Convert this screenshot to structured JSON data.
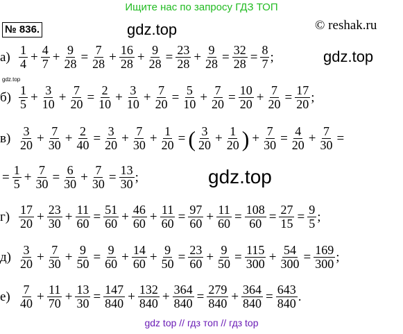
{
  "banner": "Ищите нас по запросу ГДЗ ТОП",
  "problem_number": "№ 836.",
  "watermark": "gdz.top",
  "watermark_small": "gdz.top",
  "site": "© reshak.ru",
  "footer": "gdz top  //  гдз топ  //  гдз top",
  "rows": [
    {
      "label": "а)",
      "items": [
        {
          "t": "f",
          "n": "1",
          "d": "4"
        },
        {
          "t": "o",
          "v": "+"
        },
        {
          "t": "f",
          "n": "4",
          "d": "7"
        },
        {
          "t": "o",
          "v": "+"
        },
        {
          "t": "f",
          "n": "9",
          "d": "28"
        },
        {
          "t": "o",
          "v": "="
        },
        {
          "t": "f",
          "n": "7",
          "d": "28"
        },
        {
          "t": "o",
          "v": "+"
        },
        {
          "t": "f",
          "n": "16",
          "d": "28"
        },
        {
          "t": "o",
          "v": "+"
        },
        {
          "t": "f",
          "n": "9",
          "d": "28"
        },
        {
          "t": "o",
          "v": "="
        },
        {
          "t": "f",
          "n": "23",
          "d": "28"
        },
        {
          "t": "o",
          "v": "+"
        },
        {
          "t": "f",
          "n": "9",
          "d": "28"
        },
        {
          "t": "o",
          "v": "="
        },
        {
          "t": "f",
          "n": "32",
          "d": "28"
        },
        {
          "t": "o",
          "v": "="
        },
        {
          "t": "f",
          "n": "8",
          "d": "7"
        },
        {
          "t": "p",
          "v": ";"
        }
      ]
    },
    {
      "label": "б)",
      "items": [
        {
          "t": "f",
          "n": "1",
          "d": "5"
        },
        {
          "t": "o",
          "v": "+"
        },
        {
          "t": "f",
          "n": "3",
          "d": "10"
        },
        {
          "t": "o",
          "v": "+"
        },
        {
          "t": "f",
          "n": "7",
          "d": "20"
        },
        {
          "t": "o",
          "v": "="
        },
        {
          "t": "f",
          "n": "2",
          "d": "10"
        },
        {
          "t": "o",
          "v": "+"
        },
        {
          "t": "f",
          "n": "3",
          "d": "10"
        },
        {
          "t": "o",
          "v": "+"
        },
        {
          "t": "f",
          "n": "7",
          "d": "20"
        },
        {
          "t": "o",
          "v": "="
        },
        {
          "t": "f",
          "n": "5",
          "d": "10"
        },
        {
          "t": "o",
          "v": "+"
        },
        {
          "t": "f",
          "n": "7",
          "d": "20"
        },
        {
          "t": "o",
          "v": "="
        },
        {
          "t": "f",
          "n": "10",
          "d": "20"
        },
        {
          "t": "o",
          "v": "+"
        },
        {
          "t": "f",
          "n": "7",
          "d": "20"
        },
        {
          "t": "o",
          "v": "="
        },
        {
          "t": "f",
          "n": "17",
          "d": "20"
        },
        {
          "t": "p",
          "v": ";"
        }
      ]
    },
    {
      "label": "в)",
      "items": [
        {
          "t": "f",
          "n": "3",
          "d": "20"
        },
        {
          "t": "o",
          "v": "+"
        },
        {
          "t": "f",
          "n": "7",
          "d": "30"
        },
        {
          "t": "o",
          "v": "+"
        },
        {
          "t": "f",
          "n": "2",
          "d": "40"
        },
        {
          "t": "o",
          "v": "="
        },
        {
          "t": "f",
          "n": "3",
          "d": "20"
        },
        {
          "t": "o",
          "v": "+"
        },
        {
          "t": "f",
          "n": "7",
          "d": "30"
        },
        {
          "t": "o",
          "v": "+"
        },
        {
          "t": "f",
          "n": "1",
          "d": "20"
        },
        {
          "t": "o",
          "v": "="
        },
        {
          "t": "b",
          "v": "("
        },
        {
          "t": "f",
          "n": "3",
          "d": "20"
        },
        {
          "t": "o",
          "v": "+"
        },
        {
          "t": "f",
          "n": "1",
          "d": "20"
        },
        {
          "t": "b",
          "v": ")"
        },
        {
          "t": "o",
          "v": "+"
        },
        {
          "t": "f",
          "n": "7",
          "d": "30"
        },
        {
          "t": "o",
          "v": "="
        },
        {
          "t": "f",
          "n": "4",
          "d": "20"
        },
        {
          "t": "o",
          "v": "+"
        },
        {
          "t": "f",
          "n": "7",
          "d": "30"
        },
        {
          "t": "o",
          "v": "="
        }
      ]
    },
    {
      "label": "",
      "items": [
        {
          "t": "o",
          "v": "="
        },
        {
          "t": "f",
          "n": "1",
          "d": "5"
        },
        {
          "t": "o",
          "v": "+"
        },
        {
          "t": "f",
          "n": "7",
          "d": "30"
        },
        {
          "t": "o",
          "v": "="
        },
        {
          "t": "f",
          "n": "6",
          "d": "30"
        },
        {
          "t": "o",
          "v": "+"
        },
        {
          "t": "f",
          "n": "7",
          "d": "30"
        },
        {
          "t": "o",
          "v": "="
        },
        {
          "t": "f",
          "n": "13",
          "d": "30"
        },
        {
          "t": "p",
          "v": ";"
        }
      ]
    },
    {
      "label": "г)",
      "items": [
        {
          "t": "f",
          "n": "17",
          "d": "20"
        },
        {
          "t": "o",
          "v": "+"
        },
        {
          "t": "f",
          "n": "23",
          "d": "30"
        },
        {
          "t": "o",
          "v": "+"
        },
        {
          "t": "f",
          "n": "11",
          "d": "60"
        },
        {
          "t": "o",
          "v": "="
        },
        {
          "t": "f",
          "n": "51",
          "d": "60"
        },
        {
          "t": "o",
          "v": "+"
        },
        {
          "t": "f",
          "n": "46",
          "d": "60"
        },
        {
          "t": "o",
          "v": "+"
        },
        {
          "t": "f",
          "n": "11",
          "d": "60"
        },
        {
          "t": "o",
          "v": "="
        },
        {
          "t": "f",
          "n": "97",
          "d": "60"
        },
        {
          "t": "o",
          "v": "+"
        },
        {
          "t": "f",
          "n": "11",
          "d": "60"
        },
        {
          "t": "o",
          "v": "="
        },
        {
          "t": "f",
          "n": "108",
          "d": "60"
        },
        {
          "t": "o",
          "v": "="
        },
        {
          "t": "f",
          "n": "27",
          "d": "15"
        },
        {
          "t": "o",
          "v": "="
        },
        {
          "t": "f",
          "n": "9",
          "d": "5"
        },
        {
          "t": "p",
          "v": ";"
        }
      ]
    },
    {
      "label": "д)",
      "items": [
        {
          "t": "f",
          "n": "3",
          "d": "20"
        },
        {
          "t": "o",
          "v": "+"
        },
        {
          "t": "f",
          "n": "7",
          "d": "30"
        },
        {
          "t": "o",
          "v": "+"
        },
        {
          "t": "f",
          "n": "9",
          "d": "50"
        },
        {
          "t": "o",
          "v": "="
        },
        {
          "t": "f",
          "n": "9",
          "d": "60"
        },
        {
          "t": "o",
          "v": "+"
        },
        {
          "t": "f",
          "n": "14",
          "d": "60"
        },
        {
          "t": "o",
          "v": "+"
        },
        {
          "t": "f",
          "n": "9",
          "d": "50"
        },
        {
          "t": "o",
          "v": "="
        },
        {
          "t": "f",
          "n": "23",
          "d": "60"
        },
        {
          "t": "o",
          "v": "+"
        },
        {
          "t": "f",
          "n": "9",
          "d": "50"
        },
        {
          "t": "o",
          "v": "="
        },
        {
          "t": "f",
          "n": "115",
          "d": "300"
        },
        {
          "t": "o",
          "v": "+"
        },
        {
          "t": "f",
          "n": "54",
          "d": "300"
        },
        {
          "t": "o",
          "v": "="
        },
        {
          "t": "f",
          "n": "169",
          "d": "300"
        },
        {
          "t": "p",
          "v": ";"
        }
      ]
    },
    {
      "label": "е)",
      "items": [
        {
          "t": "f",
          "n": "7",
          "d": "40"
        },
        {
          "t": "o",
          "v": "+"
        },
        {
          "t": "f",
          "n": "11",
          "d": "70"
        },
        {
          "t": "o",
          "v": "+"
        },
        {
          "t": "f",
          "n": "13",
          "d": "30"
        },
        {
          "t": "o",
          "v": "="
        },
        {
          "t": "f",
          "n": "147",
          "d": "840"
        },
        {
          "t": "o",
          "v": "+"
        },
        {
          "t": "f",
          "n": "132",
          "d": "840"
        },
        {
          "t": "o",
          "v": "+"
        },
        {
          "t": "f",
          "n": "364",
          "d": "840"
        },
        {
          "t": "o",
          "v": "="
        },
        {
          "t": "f",
          "n": "279",
          "d": "840"
        },
        {
          "t": "o",
          "v": "+"
        },
        {
          "t": "f",
          "n": "364",
          "d": "840"
        },
        {
          "t": "o",
          "v": "="
        },
        {
          "t": "f",
          "n": "643",
          "d": "840"
        },
        {
          "t": "p",
          "v": "."
        }
      ]
    }
  ]
}
